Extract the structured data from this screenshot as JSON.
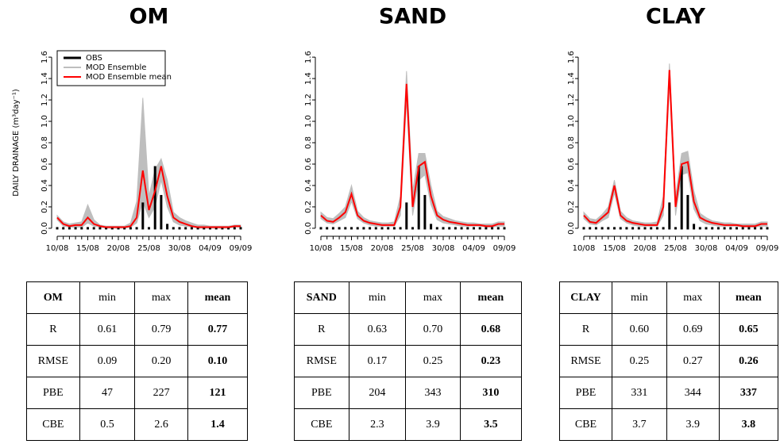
{
  "chart_data": [
    {
      "type": "line",
      "title": "OM",
      "y_label": "DAILY DRAINAGE (m³day⁻¹)",
      "legend": "top-left",
      "categories": [
        "10/08",
        null,
        null,
        null,
        null,
        "15/08",
        null,
        null,
        null,
        null,
        "20/08",
        null,
        null,
        null,
        null,
        "25/08",
        null,
        null,
        null,
        null,
        "30/08",
        null,
        null,
        null,
        null,
        "04/09",
        null,
        null,
        null,
        null,
        "09/09"
      ],
      "ylim": [
        -0.06,
        1.66
      ],
      "yticks": [
        {
          "value": 0,
          "label": "0.0"
        },
        0.2,
        0.4,
        0.6,
        0.8,
        {
          "value": 1,
          "label": "1.0"
        },
        1.2,
        1.4,
        1.6
      ],
      "series": [
        {
          "name": "OBS",
          "mark": "bar",
          "color": "#000000",
          "values": [
            0,
            0,
            0,
            0,
            0,
            0,
            0,
            0,
            0,
            0,
            0,
            0,
            0,
            0,
            0.23,
            0,
            0.57,
            0.3,
            0.03,
            0,
            0,
            0,
            0,
            0,
            0,
            0,
            0,
            0,
            0,
            0,
            0
          ]
        },
        {
          "name": "MOD Ensemble",
          "mark": "band",
          "color": "#bebebe",
          "values": [
            0.12,
            0.06,
            0.04,
            0.05,
            0.06,
            0.22,
            0.08,
            0.03,
            0.02,
            0.02,
            0.02,
            0.02,
            0.05,
            0.25,
            1.22,
            0.3,
            0.55,
            0.65,
            0.45,
            0.15,
            0.1,
            0.07,
            0.05,
            0.03,
            0.03,
            0.02,
            0.02,
            0.02,
            0.02,
            0.03,
            0.03
          ],
          "values_low": [
            0.08,
            0.02,
            0.01,
            0.01,
            0.01,
            0.05,
            0.02,
            0.01,
            0,
            0,
            0,
            0,
            0.01,
            0.05,
            0.25,
            0.1,
            0.2,
            0.45,
            0.2,
            0.06,
            0.03,
            0.02,
            0.01,
            0,
            0,
            0,
            0,
            0,
            0,
            0.01,
            0.01
          ]
        },
        {
          "name": "MOD Ensemble mean",
          "mark": "line",
          "color": "#ff0000",
          "values": [
            0.1,
            0.04,
            0.02,
            0.03,
            0.03,
            0.1,
            0.04,
            0.02,
            0.01,
            0.01,
            0.01,
            0.01,
            0.02,
            0.1,
            0.54,
            0.17,
            0.35,
            0.58,
            0.3,
            0.1,
            0.06,
            0.04,
            0.02,
            0.01,
            0.01,
            0.01,
            0.01,
            0.01,
            0.01,
            0.02,
            0.02
          ]
        }
      ]
    },
    {
      "type": "line",
      "title": "SAND",
      "categories": [
        "10/08",
        null,
        null,
        null,
        null,
        "15/08",
        null,
        null,
        null,
        null,
        "20/08",
        null,
        null,
        null,
        null,
        "25/08",
        null,
        null,
        null,
        null,
        "30/08",
        null,
        null,
        null,
        null,
        "04/09",
        null,
        null,
        null,
        null,
        "09/09"
      ],
      "ylim": [
        -0.06,
        1.66
      ],
      "yticks": [
        {
          "value": 0,
          "label": "0.0"
        },
        0.2,
        0.4,
        0.6,
        0.8,
        {
          "value": 1,
          "label": "1.0"
        },
        1.2,
        1.4,
        1.6
      ],
      "series": [
        {
          "name": "OBS",
          "mark": "bar",
          "color": "#000000",
          "values": [
            0,
            0,
            0,
            0,
            0,
            0,
            0,
            0,
            0,
            0,
            0,
            0,
            0,
            0,
            0.23,
            0,
            0.57,
            0.3,
            0.03,
            0,
            0,
            0,
            0,
            0,
            0,
            0,
            0,
            0,
            0,
            0,
            0
          ]
        },
        {
          "name": "MOD Ensemble",
          "mark": "band",
          "color": "#bebebe",
          "values": [
            0.15,
            0.1,
            0.09,
            0.14,
            0.2,
            0.4,
            0.16,
            0.1,
            0.07,
            0.06,
            0.05,
            0.05,
            0.06,
            0.3,
            1.47,
            0.35,
            0.7,
            0.7,
            0.4,
            0.16,
            0.11,
            0.09,
            0.07,
            0.06,
            0.05,
            0.05,
            0.04,
            0.04,
            0.04,
            0.06,
            0.06
          ],
          "values_low": [
            0.09,
            0.05,
            0.04,
            0.07,
            0.1,
            0.25,
            0.09,
            0.05,
            0.03,
            0.02,
            0.02,
            0.02,
            0.02,
            0.12,
            1.2,
            0.12,
            0.45,
            0.5,
            0.22,
            0.08,
            0.05,
            0.04,
            0.03,
            0.02,
            0.02,
            0.02,
            0.02,
            0.01,
            0.01,
            0.02,
            0.02
          ]
        },
        {
          "name": "MOD Ensemble mean",
          "mark": "line",
          "color": "#ff0000",
          "values": [
            0.12,
            0.07,
            0.06,
            0.1,
            0.15,
            0.32,
            0.12,
            0.07,
            0.05,
            0.04,
            0.03,
            0.03,
            0.03,
            0.2,
            1.35,
            0.2,
            0.58,
            0.62,
            0.3,
            0.12,
            0.08,
            0.06,
            0.05,
            0.04,
            0.03,
            0.03,
            0.03,
            0.02,
            0.02,
            0.04,
            0.04
          ]
        }
      ]
    },
    {
      "type": "line",
      "title": "CLAY",
      "categories": [
        "10/08",
        null,
        null,
        null,
        null,
        "15/08",
        null,
        null,
        null,
        null,
        "20/08",
        null,
        null,
        null,
        null,
        "25/08",
        null,
        null,
        null,
        null,
        "30/08",
        null,
        null,
        null,
        null,
        "04/09",
        null,
        null,
        null,
        null,
        "09/09"
      ],
      "ylim": [
        -0.06,
        1.66
      ],
      "yticks": [
        {
          "value": 0,
          "label": "0.0"
        },
        0.2,
        0.4,
        0.6,
        0.8,
        {
          "value": 1,
          "label": "1.0"
        },
        1.2,
        1.4,
        1.6
      ],
      "series": [
        {
          "name": "OBS",
          "mark": "bar",
          "color": "#000000",
          "values": [
            0,
            0,
            0,
            0,
            0,
            0,
            0,
            0,
            0,
            0,
            0,
            0,
            0,
            0,
            0.23,
            0,
            0.57,
            0.3,
            0.03,
            0,
            0,
            0,
            0,
            0,
            0,
            0,
            0,
            0,
            0,
            0,
            0
          ]
        },
        {
          "name": "MOD Ensemble",
          "mark": "band",
          "color": "#bebebe",
          "values": [
            0.15,
            0.09,
            0.08,
            0.13,
            0.2,
            0.45,
            0.16,
            0.1,
            0.07,
            0.06,
            0.05,
            0.05,
            0.06,
            0.3,
            1.54,
            0.3,
            0.7,
            0.72,
            0.35,
            0.14,
            0.1,
            0.07,
            0.06,
            0.05,
            0.05,
            0.04,
            0.04,
            0.04,
            0.04,
            0.06,
            0.06
          ],
          "values_low": [
            0.09,
            0.04,
            0.03,
            0.07,
            0.1,
            0.33,
            0.09,
            0.05,
            0.03,
            0.02,
            0.02,
            0.02,
            0.02,
            0.12,
            1.35,
            0.12,
            0.5,
            0.52,
            0.18,
            0.07,
            0.04,
            0.03,
            0.02,
            0.02,
            0.02,
            0.02,
            0.01,
            0.01,
            0.01,
            0.02,
            0.02
          ]
        },
        {
          "name": "MOD Ensemble mean",
          "mark": "line",
          "color": "#ff0000",
          "values": [
            0.12,
            0.06,
            0.05,
            0.1,
            0.15,
            0.4,
            0.12,
            0.07,
            0.05,
            0.04,
            0.03,
            0.03,
            0.03,
            0.2,
            1.48,
            0.2,
            0.6,
            0.62,
            0.25,
            0.1,
            0.07,
            0.05,
            0.04,
            0.03,
            0.03,
            0.03,
            0.02,
            0.02,
            0.02,
            0.04,
            0.04
          ]
        }
      ]
    }
  ],
  "tables": [
    {
      "header": [
        "OM",
        "min",
        "max",
        "mean"
      ],
      "rows": [
        [
          "R",
          "0.61",
          "0.79",
          "0.77"
        ],
        [
          "RMSE",
          "0.09",
          "0.20",
          "0.10"
        ],
        [
          "PBE",
          "47",
          "227",
          "121"
        ],
        [
          "CBE",
          "0.5",
          "2.6",
          "1.4"
        ]
      ]
    },
    {
      "header": [
        "SAND",
        "min",
        "max",
        "mean"
      ],
      "rows": [
        [
          "R",
          "0.63",
          "0.70",
          "0.68"
        ],
        [
          "RMSE",
          "0.17",
          "0.25",
          "0.23"
        ],
        [
          "PBE",
          "204",
          "343",
          "310"
        ],
        [
          "CBE",
          "2.3",
          "3.9",
          "3.5"
        ]
      ]
    },
    {
      "header": [
        "CLAY",
        "min",
        "max",
        "mean"
      ],
      "rows": [
        [
          "R",
          "0.60",
          "0.69",
          "0.65"
        ],
        [
          "RMSE",
          "0.25",
          "0.27",
          "0.26"
        ],
        [
          "PBE",
          "331",
          "344",
          "337"
        ],
        [
          "CBE",
          "3.7",
          "3.9",
          "3.8"
        ]
      ]
    }
  ]
}
